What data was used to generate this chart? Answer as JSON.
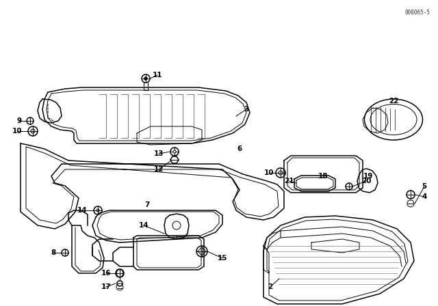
{
  "background_color": "#ffffff",
  "line_color": "#000000",
  "diagram_ref_text": "000065-5",
  "label_fontsize": 7.5,
  "fig_w": 6.4,
  "fig_h": 4.48,
  "dpi": 100
}
